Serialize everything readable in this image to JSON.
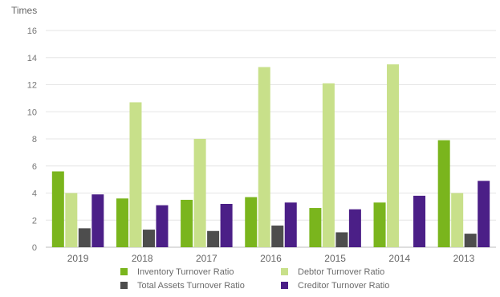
{
  "chart_data": {
    "type": "bar",
    "title": "",
    "ylabel": "Times",
    "xlabel": "",
    "ylim": [
      0,
      16
    ],
    "yticks": [
      0,
      2,
      4,
      6,
      8,
      10,
      12,
      14,
      16
    ],
    "grid": true,
    "legend_position": "bottom",
    "categories": [
      "2019",
      "2018",
      "2017",
      "2016",
      "2015",
      "2014",
      "2013"
    ],
    "series": [
      {
        "name": "Inventory Turnover Ratio",
        "color": "#7ab51d",
        "values": [
          5.6,
          3.6,
          3.5,
          3.7,
          2.9,
          3.3,
          7.9
        ]
      },
      {
        "name": "Debtor Turnover Ratio",
        "color": "#c8e08a",
        "values": [
          4.0,
          10.7,
          8.0,
          13.3,
          12.1,
          13.5,
          4.0
        ]
      },
      {
        "name": "Total Assets Turnover Ratio",
        "color": "#4d4d4d",
        "values": [
          1.4,
          1.3,
          1.2,
          1.6,
          1.1,
          null,
          1.0
        ]
      },
      {
        "name": "Creditor Turnover Ratio",
        "color": "#4b1f87",
        "values": [
          3.9,
          3.1,
          3.2,
          3.3,
          2.8,
          3.8,
          4.9
        ]
      }
    ]
  }
}
